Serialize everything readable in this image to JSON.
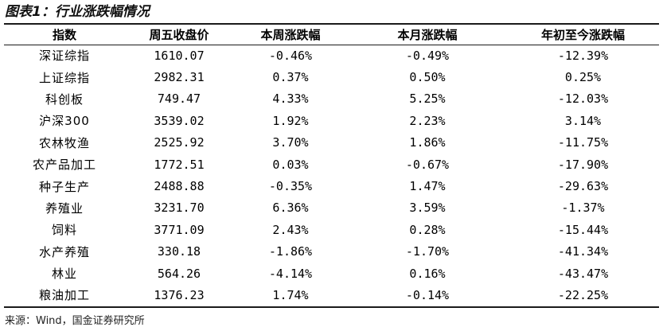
{
  "title": "图表1：行业涨跌幅情况",
  "columns": [
    "指数",
    "周五收盘价",
    "本周涨跌幅",
    "本月涨跌幅",
    "年初至今涨跌幅"
  ],
  "rows": [
    [
      "深证综指",
      "1610.07",
      "-0.46%",
      "-0.49%",
      "-12.39%"
    ],
    [
      "上证综指",
      "2982.31",
      "0.37%",
      "0.50%",
      "0.25%"
    ],
    [
      "科创板",
      "749.47",
      "4.33%",
      "5.25%",
      "-12.03%"
    ],
    [
      "沪深300",
      "3539.02",
      "1.92%",
      "2.23%",
      "3.14%"
    ],
    [
      "农林牧渔",
      "2525.92",
      "3.70%",
      "1.86%",
      "-11.75%"
    ],
    [
      "农产品加工",
      "1772.51",
      "0.03%",
      "-0.67%",
      "-17.90%"
    ],
    [
      "种子生产",
      "2488.88",
      "-0.35%",
      "1.47%",
      "-29.63%"
    ],
    [
      "养殖业",
      "3231.70",
      "6.36%",
      "3.59%",
      "-1.37%"
    ],
    [
      "饲料",
      "3771.09",
      "2.43%",
      "0.28%",
      "-15.44%"
    ],
    [
      "水产养殖",
      "330.18",
      "-1.86%",
      "-1.70%",
      "-41.34%"
    ],
    [
      "林业",
      "564.26",
      "-4.14%",
      "0.16%",
      "-43.47%"
    ],
    [
      "粮油加工",
      "1376.23",
      "1.74%",
      "-0.14%",
      "-22.25%"
    ]
  ],
  "source": "来源：Wind，国金证券研究所"
}
